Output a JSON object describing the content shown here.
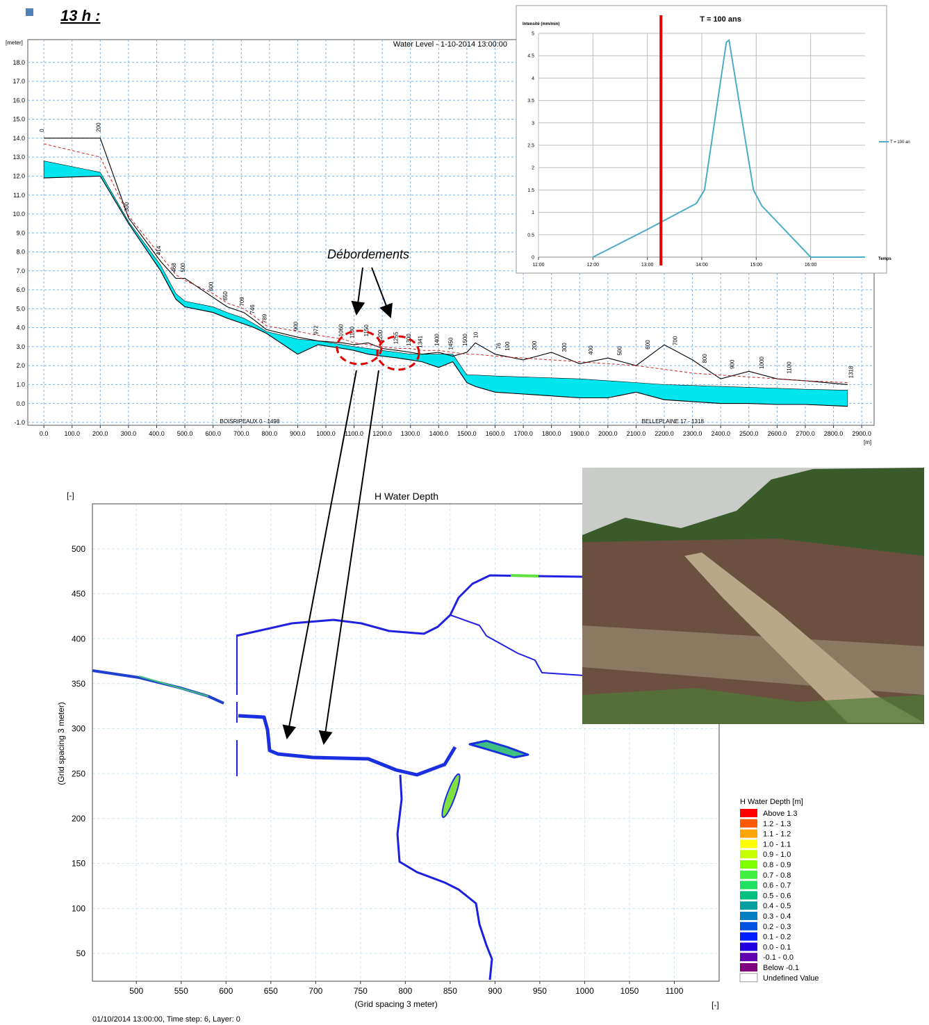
{
  "heading": "13 h :",
  "chart_data": [
    {
      "type": "area",
      "title": "Water Level - 1-10-2014 13:00:00",
      "y_unit": "[meter]",
      "x_unit": "[m]",
      "xlim": [
        -57,
        2944
      ],
      "ylim": [
        -1.15,
        19.2
      ],
      "grid": true,
      "xticks": [
        {
          "value": 0,
          "label": "0.0"
        },
        {
          "value": 100,
          "label": "100.0"
        },
        {
          "value": 200,
          "label": "200.0"
        },
        {
          "value": 300,
          "label": "300.0"
        },
        {
          "value": 400,
          "label": "400.0"
        },
        {
          "value": 500,
          "label": "500.0"
        },
        {
          "value": 600,
          "label": "600.0"
        },
        {
          "value": 700,
          "label": "700.0"
        },
        {
          "value": 800,
          "label": "800.0"
        },
        {
          "value": 900,
          "label": "900.0"
        },
        {
          "value": 1000,
          "label": "1000.0"
        },
        {
          "value": 1100,
          "label": "1100.0"
        },
        {
          "value": 1200,
          "label": "1200.0"
        },
        {
          "value": 1300,
          "label": "1300.0"
        },
        {
          "value": 1400,
          "label": "1400.0"
        },
        {
          "value": 1500,
          "label": "1500.0"
        },
        {
          "value": 1600,
          "label": "1600.0"
        },
        {
          "value": 1700,
          "label": "1700.0"
        },
        {
          "value": 1800,
          "label": "1800.0"
        },
        {
          "value": 1900,
          "label": "1900.0"
        },
        {
          "value": 2000,
          "label": "2000.0"
        },
        {
          "value": 2100,
          "label": "2100.0"
        },
        {
          "value": 2200,
          "label": "2200.0"
        },
        {
          "value": 2300,
          "label": "2300.0"
        },
        {
          "value": 2400,
          "label": "2400.0"
        },
        {
          "value": 2500,
          "label": "2500.0"
        },
        {
          "value": 2600,
          "label": "2600.0"
        },
        {
          "value": 2700,
          "label": "2700.0"
        },
        {
          "value": 2800,
          "label": "2800.0"
        },
        {
          "value": 2900,
          "label": "2900.0"
        }
      ],
      "yticks": [
        {
          "value": -1,
          "label": "-1.0"
        },
        {
          "value": 0,
          "label": "0.0"
        },
        {
          "value": 1,
          "label": "1.0"
        },
        {
          "value": 2,
          "label": "2.0"
        },
        {
          "value": 3,
          "label": "3.0"
        },
        {
          "value": 4,
          "label": "4.0"
        },
        {
          "value": 5,
          "label": "5.0"
        },
        {
          "value": 6,
          "label": "6.0"
        },
        {
          "value": 7,
          "label": "7.0"
        },
        {
          "value": 8,
          "label": "8.0"
        },
        {
          "value": 9,
          "label": "9.0"
        },
        {
          "value": 10,
          "label": "10.0"
        },
        {
          "value": 11,
          "label": "11.0"
        },
        {
          "value": 12,
          "label": "12.0"
        },
        {
          "value": 13,
          "label": "13.0"
        },
        {
          "value": 14,
          "label": "14.0"
        },
        {
          "value": 15,
          "label": "15.0"
        },
        {
          "value": 16,
          "label": "16.0"
        },
        {
          "value": 17,
          "label": "17.0"
        },
        {
          "value": 18,
          "label": "18.0"
        }
      ],
      "x": [
        0,
        200,
        300,
        414,
        468,
        500,
        600,
        650,
        709,
        746,
        789,
        900,
        972,
        1060,
        1100,
        1150,
        1200,
        1255,
        1300,
        1341,
        1400,
        1450,
        1500,
        1530,
        1600,
        1700,
        1800,
        1900,
        2000,
        2100,
        2200,
        2300,
        2400,
        2500,
        2600,
        2700,
        2850
      ],
      "series": [
        {
          "color": "#00e5ee",
          "values": [
            12.8,
            12.2,
            9.6,
            7.3,
            5.8,
            5.4,
            5.1,
            4.8,
            4.5,
            4.2,
            3.8,
            3.4,
            3.3,
            3.1,
            3.0,
            2.9,
            2.8,
            2.7,
            2.6,
            2.6,
            2.6,
            2.6,
            1.5,
            1.5,
            1.45,
            1.4,
            1.35,
            1.3,
            1.2,
            1.1,
            1.0,
            0.95,
            0.9,
            0.85,
            0.8,
            0.75,
            0.7
          ]
        },
        {
          "color": "#000000",
          "values": [
            11.9,
            12.0,
            9.5,
            7.0,
            5.5,
            5.1,
            4.8,
            4.5,
            4.2,
            4.0,
            3.7,
            2.6,
            3.1,
            2.9,
            2.8,
            2.6,
            2.5,
            2.4,
            2.3,
            2.2,
            1.9,
            2.2,
            1.1,
            0.9,
            0.6,
            0.5,
            0.4,
            0.3,
            0.3,
            0.6,
            0.2,
            0.1,
            0.0,
            0.0,
            -0.05,
            -0.05,
            -0.15
          ]
        },
        {
          "color": "#000000",
          "values": [
            14.0,
            14.0,
            9.8,
            7.5,
            6.6,
            6.6,
            5.6,
            5.1,
            4.8,
            4.4,
            3.9,
            3.5,
            3.3,
            3.2,
            3.1,
            3.2,
            2.9,
            2.8,
            2.7,
            2.6,
            2.7,
            2.5,
            2.7,
            3.2,
            2.6,
            2.3,
            2.7,
            2.1,
            2.4,
            2.0,
            3.1,
            2.3,
            1.3,
            1.7,
            1.3,
            1.2,
            1.0
          ]
        },
        {
          "color": "#d02020",
          "dash": true,
          "values": [
            13.7,
            13.0,
            9.9,
            7.8,
            6.8,
            6.5,
            5.8,
            5.3,
            5.0,
            4.6,
            4.1,
            3.8,
            3.6,
            3.4,
            3.2,
            3.1,
            3.0,
            2.9,
            2.9,
            2.8,
            2.8,
            2.7,
            2.6,
            2.6,
            2.5,
            2.4,
            2.3,
            2.2,
            2.1,
            2.0,
            1.8,
            1.6,
            1.5,
            1.4,
            1.3,
            1.2,
            1.1
          ]
        }
      ],
      "sections": [
        "0",
        "200",
        "300",
        "414",
        "468",
        "500",
        "600",
        "650",
        "709",
        "746",
        "789",
        "900",
        "972",
        "1060",
        "1100",
        "1150",
        "1200",
        "1255",
        "1300",
        "1341",
        "1400",
        "1450",
        "1500",
        "10",
        "76",
        "100",
        "200",
        "300",
        "400",
        "500",
        "600",
        "700",
        "800",
        "900",
        "1000",
        "1100",
        "1318"
      ],
      "section_x": [
        0,
        200,
        300,
        414,
        468,
        500,
        600,
        650,
        709,
        746,
        789,
        900,
        972,
        1060,
        1100,
        1150,
        1200,
        1255,
        1300,
        1341,
        1400,
        1450,
        1500,
        1539,
        1620,
        1650,
        1746,
        1852,
        1946,
        2049,
        2148,
        2246,
        2350,
        2448,
        2552,
        2650,
        2869
      ],
      "branches": [
        "BOISRIPEAUX  0 - 1498",
        "BELLEPLAINE  17 - 1318"
      ],
      "branch_x": [
        730,
        2230
      ],
      "annotation": "Débordements"
    },
    {
      "type": "line",
      "title": "T = 100 ans",
      "y_label": "Intensité (mm/min)",
      "x_label": "Temps",
      "xlim": [
        11,
        17
      ],
      "ylim": [
        0,
        5
      ],
      "xticks": [
        {
          "value": 11,
          "label": "11:00"
        },
        {
          "value": 12,
          "label": "12:00"
        },
        {
          "value": 13,
          "label": "13:00"
        },
        {
          "value": 14,
          "label": "14:00"
        },
        {
          "value": 15,
          "label": "15:00"
        },
        {
          "value": 16,
          "label": "16:00"
        }
      ],
      "yticks": [
        0,
        0.5,
        1,
        1.5,
        2,
        2.5,
        3,
        3.5,
        4,
        4.5,
        5
      ],
      "grid": true,
      "x": [
        12,
        13,
        13.9,
        14.05,
        14.45,
        14.5,
        14.95,
        15.1,
        16,
        17
      ],
      "series": [
        {
          "name": "T = 100 an",
          "color": "#4bacc6",
          "values": [
            0,
            0.62,
            1.2,
            1.5,
            4.8,
            4.85,
            1.5,
            1.15,
            0,
            0
          ]
        }
      ],
      "marker": 13.25,
      "marker_color": "#e00000",
      "legend": "right"
    },
    {
      "type": "heatmap",
      "title": "H Water Depth",
      "x_label": "(Grid spacing 3 meter)",
      "y_label": "(Grid spacing 3 meter)",
      "x_unit": "[-]",
      "y_unit": "[-]",
      "xlim": [
        451,
        1150
      ],
      "ylim": [
        19,
        550
      ],
      "xticks": [
        500,
        550,
        600,
        650,
        700,
        750,
        800,
        850,
        900,
        950,
        1000,
        1050,
        1100
      ],
      "yticks": [
        50,
        100,
        150,
        200,
        250,
        300,
        350,
        400,
        450,
        500
      ],
      "grid": true,
      "legend_title": "H Water Depth [m]",
      "legend": [
        {
          "label": "Above  1.3",
          "color": "#ff0000"
        },
        {
          "label": "1.2 -  1.3",
          "color": "#ff5a00"
        },
        {
          "label": "1.1 -  1.2",
          "color": "#ffa500"
        },
        {
          "label": "1.0 -  1.1",
          "color": "#ffff00"
        },
        {
          "label": "0.9 -  1.0",
          "color": "#c8ff00"
        },
        {
          "label": "0.8 -  0.9",
          "color": "#80ff00"
        },
        {
          "label": "0.7 -  0.8",
          "color": "#40f040"
        },
        {
          "label": "0.6 -  0.7",
          "color": "#20e060"
        },
        {
          "label": "0.5 -  0.6",
          "color": "#00c080"
        },
        {
          "label": "0.4 -  0.5",
          "color": "#00a0a0"
        },
        {
          "label": "0.3 -  0.4",
          "color": "#0080c0"
        },
        {
          "label": "0.2 -  0.3",
          "color": "#0050e0"
        },
        {
          "label": "0.1 -  0.2",
          "color": "#0020ff"
        },
        {
          "label": "0.0 -  0.1",
          "color": "#2000e0"
        },
        {
          "label": "-0.1 -  0.0",
          "color": "#6000b0"
        },
        {
          "label": "Below -0.1",
          "color": "#800080"
        },
        {
          "label": "Undefined Value",
          "color": "#ffffff"
        }
      ],
      "footer": "01/10/2014 13:00:00, Time step: 6, Layer: 0"
    }
  ]
}
